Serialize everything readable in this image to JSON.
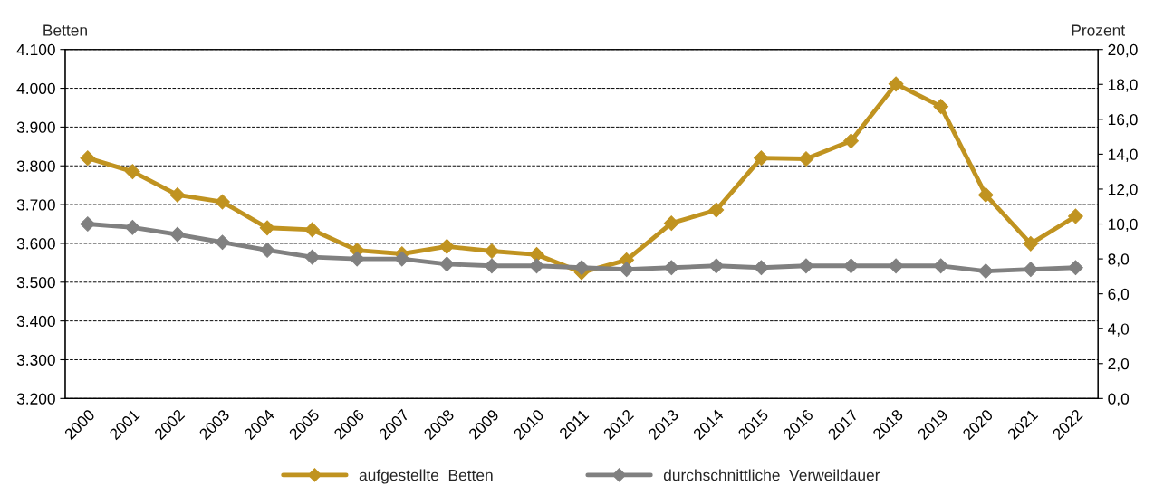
{
  "chart_data": {
    "type": "line",
    "ylabel": "Betten",
    "y2label": "Prozent",
    "categories": [
      "2000",
      "2001",
      "2002",
      "2003",
      "2004",
      "2005",
      "2006",
      "2007",
      "2008",
      "2009",
      "2010",
      "2011",
      "2012",
      "2013",
      "2014",
      "2015",
      "2016",
      "2017",
      "2018",
      "2019",
      "2020",
      "2021",
      "2022"
    ],
    "series": [
      {
        "name": "aufgestellte  Betten",
        "color": "#c09320",
        "values": [
          3820,
          3785,
          3725,
          3707,
          3640,
          3635,
          3582,
          3573,
          3592,
          3580,
          3571,
          3525,
          3557,
          3652,
          3686,
          3820,
          3818,
          3864,
          4011,
          3953,
          3725,
          3599,
          3670
        ]
      },
      {
        "name": "durchschnittliche  Verweildauer",
        "color": "#808080",
        "axis": "y2",
        "values": [
          10.0,
          9.8,
          9.4,
          8.95,
          8.5,
          8.1,
          8.0,
          8.0,
          7.7,
          7.6,
          7.6,
          7.5,
          7.4,
          7.5,
          7.6,
          7.5,
          7.6,
          7.6,
          7.6,
          7.6,
          7.3,
          7.4,
          7.5
        ]
      }
    ],
    "ylim": [
      3200,
      4100
    ],
    "yticks": [
      {
        "value": 3200,
        "label": "3.200"
      },
      {
        "value": 3300,
        "label": "3.300"
      },
      {
        "value": 3400,
        "label": "3.400"
      },
      {
        "value": 3500,
        "label": "3.500"
      },
      {
        "value": 3600,
        "label": "3.600"
      },
      {
        "value": 3700,
        "label": "3.700"
      },
      {
        "value": 3800,
        "label": "3.800"
      },
      {
        "value": 3900,
        "label": "3.900"
      },
      {
        "value": 4000,
        "label": "4.000"
      },
      {
        "value": 4100,
        "label": "4.100"
      }
    ],
    "y2lim": [
      0,
      20
    ],
    "y2ticks": [
      {
        "value": 0,
        "label": "0,0"
      },
      {
        "value": 2,
        "label": "2,0"
      },
      {
        "value": 4,
        "label": "4,0"
      },
      {
        "value": 6,
        "label": "6,0"
      },
      {
        "value": 8,
        "label": "8,0"
      },
      {
        "value": 10,
        "label": "10,0"
      },
      {
        "value": 12,
        "label": "12,0"
      },
      {
        "value": 14,
        "label": "14,0"
      },
      {
        "value": 16,
        "label": "16,0"
      },
      {
        "value": 18,
        "label": "18,0"
      },
      {
        "value": 20,
        "label": "20,0"
      }
    ],
    "grid": "y",
    "legend": "bottom",
    "marker": "diamond",
    "line_style": "solid"
  }
}
